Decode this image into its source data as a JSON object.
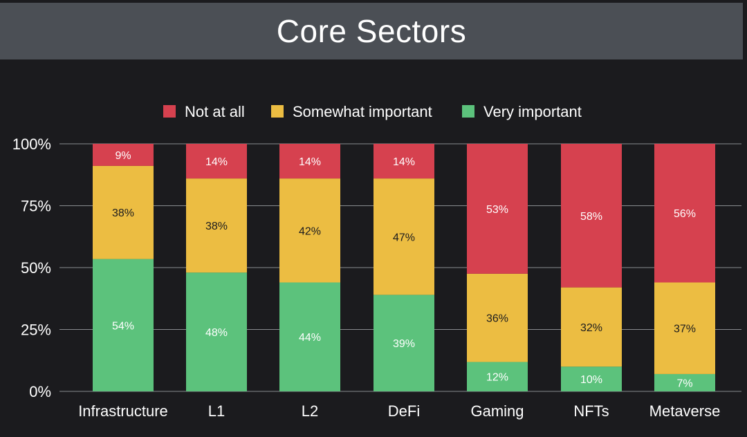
{
  "header": {
    "title": "Core Sectors"
  },
  "chart_data": {
    "type": "bar",
    "stacked": true,
    "title": "Core Sectors",
    "xlabel": "",
    "ylabel": "",
    "ylim": [
      0,
      100
    ],
    "y_ticks": [
      "0%",
      "25%",
      "50%",
      "75%",
      "100%"
    ],
    "categories": [
      "Infrastructure",
      "L1",
      "L2",
      "DeFi",
      "Gaming",
      "NFTs",
      "Metaverse"
    ],
    "legend_position": "top-center",
    "series": [
      {
        "name": "Very important",
        "color": "#5cc27c",
        "label_color": "#ffffff",
        "values": [
          54,
          48,
          44,
          39,
          12,
          10,
          7
        ]
      },
      {
        "name": "Somewhat important",
        "color": "#ecbd42",
        "label_color": "#1b1b1e",
        "values": [
          38,
          38,
          42,
          47,
          36,
          32,
          37
        ]
      },
      {
        "name": "Not at all",
        "color": "#d6414f",
        "label_color": "#ffffff",
        "values": [
          9,
          14,
          14,
          14,
          53,
          58,
          56
        ]
      }
    ],
    "legend_order": [
      "Not at all",
      "Somewhat important",
      "Very important"
    ],
    "grid": true
  }
}
